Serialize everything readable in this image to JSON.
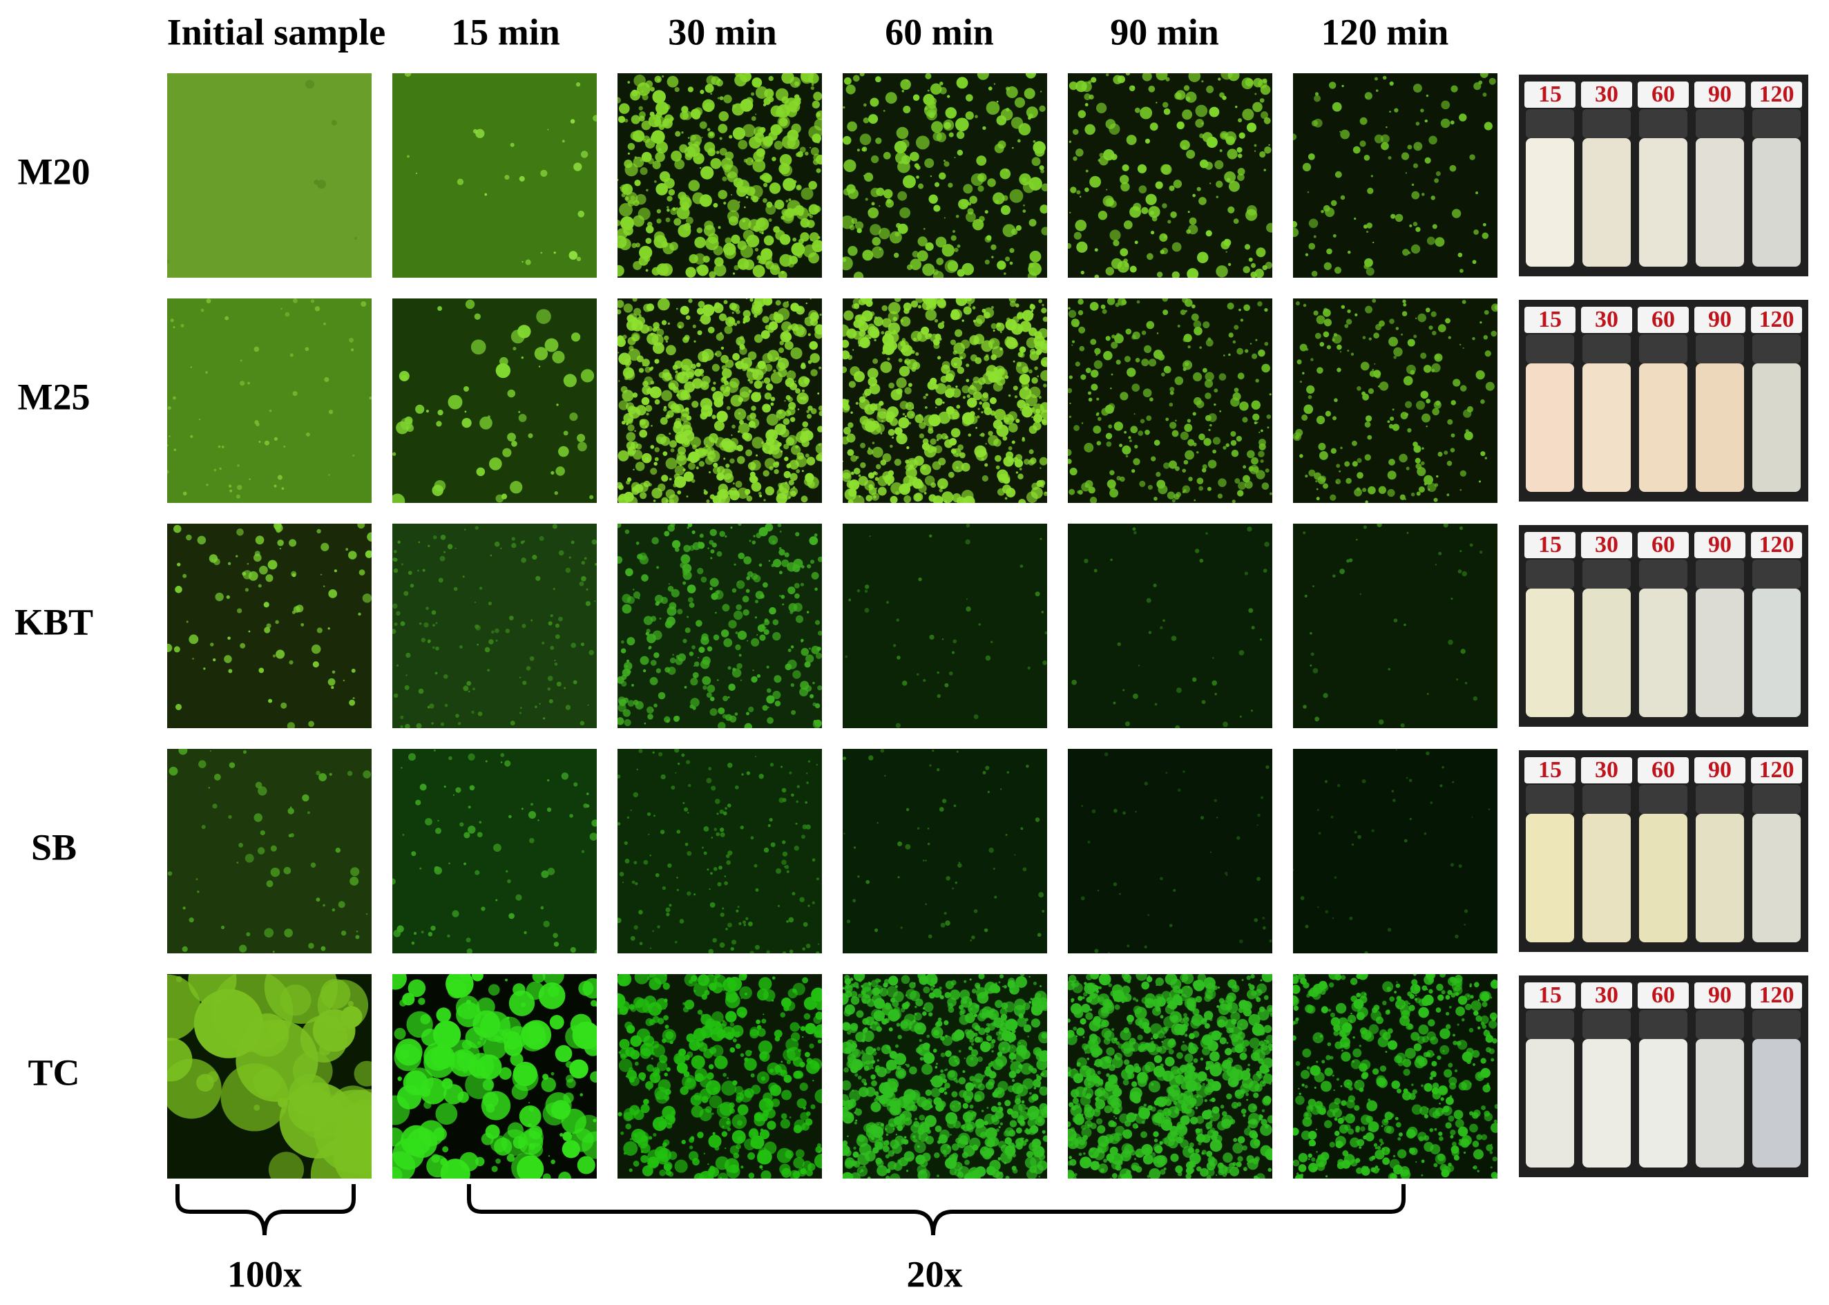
{
  "columns": [
    "Initial sample",
    "15 min",
    "30 min",
    "60 min",
    "90 min",
    "120 min"
  ],
  "rows": [
    {
      "label": "M20",
      "vials": [
        "15",
        "30",
        "60",
        "90",
        "120"
      ]
    },
    {
      "label": "M25",
      "vials": [
        "15",
        "30",
        "60",
        "90",
        "120"
      ]
    },
    {
      "label": "KBT",
      "vials": [
        "15",
        "30",
        "60",
        "90",
        "120"
      ]
    },
    {
      "label": "SB",
      "vials": [
        "15",
        "30",
        "60",
        "90",
        "120"
      ]
    },
    {
      "label": "TC",
      "vials": [
        "15",
        "30",
        "60",
        "90",
        "120"
      ]
    }
  ],
  "magnifications": [
    "100x",
    "20x"
  ]
}
